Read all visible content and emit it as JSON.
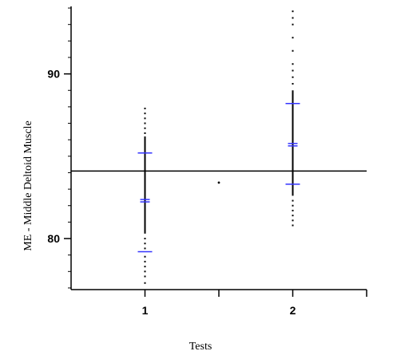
{
  "chart_data": {
    "type": "scatter",
    "title": "",
    "xlabel": "Tests",
    "ylabel": "ME - Middle Deltoid Muscle",
    "x_ticks": [
      1,
      2
    ],
    "x_tick_labels": [
      "1",
      "2"
    ],
    "xlim": [
      0.5,
      2.5
    ],
    "ylim": [
      76.9,
      94.1
    ],
    "y_ticks": [
      80,
      90
    ],
    "y_tick_labels": [
      "80",
      "90"
    ],
    "y_minor_step": 1,
    "grand_mean": 84.1,
    "center_marker": {
      "x": 1.5,
      "y": 83.4
    },
    "grid": false,
    "legend": "none",
    "groups": [
      {
        "label": "1",
        "x": 1,
        "mean": 82.3,
        "upper_bar": 85.2,
        "lower_bar": 79.2,
        "line_range": [
          80.3,
          86.2
        ],
        "dots_upper": [
          86.4,
          86.7,
          87.0,
          87.3,
          87.6,
          87.9
        ],
        "dots_lower": [
          80.0,
          79.7,
          79.4,
          78.9,
          78.6,
          78.3,
          78.0,
          77.7,
          77.3
        ]
      },
      {
        "label": "2",
        "x": 2,
        "mean": 85.7,
        "upper_bar": 88.2,
        "lower_bar": 83.3,
        "line_range": [
          82.6,
          89.0
        ],
        "dots_upper": [
          89.4,
          89.8,
          90.2,
          90.6,
          91.4,
          92.2,
          93.0,
          93.4,
          93.8
        ],
        "dots_lower": [
          82.3,
          82.0,
          81.7,
          81.4,
          81.1,
          80.8
        ]
      }
    ],
    "colors": {
      "axes": "#000000",
      "bars": "#3333ff",
      "points": "#000000"
    }
  }
}
